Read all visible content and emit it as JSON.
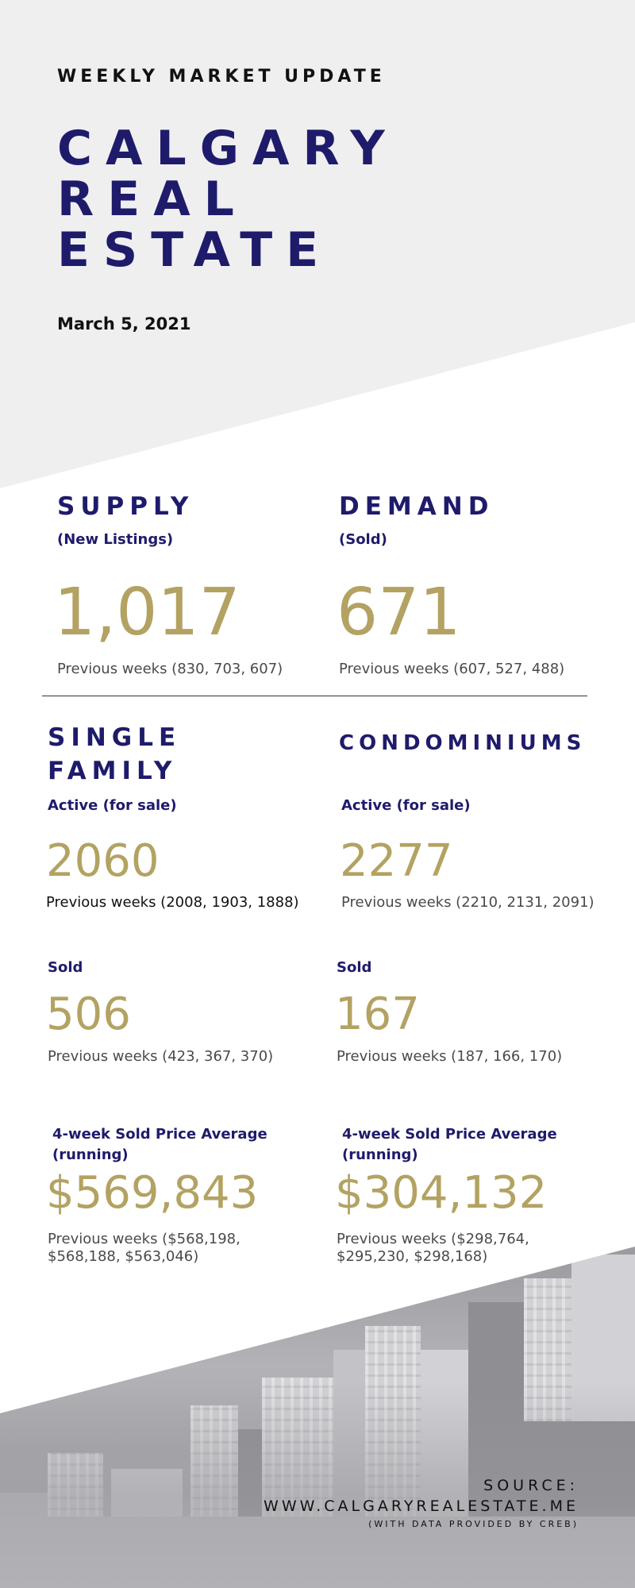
{
  "header": {
    "kicker": "WEEKLY MARKET UPDATE",
    "title_lines": [
      "CALGARY",
      "REAL",
      "ESTATE"
    ],
    "date": "March 5, 2021"
  },
  "supply": {
    "heading": "SUPPLY",
    "subheading": "(New Listings)",
    "value": "1,017",
    "previous": "Previous weeks (830, 703, 607)"
  },
  "demand": {
    "heading": "DEMAND",
    "subheading": "(Sold)",
    "value": "671",
    "previous": "Previous weeks (607, 527, 488)"
  },
  "single_family": {
    "heading_lines": [
      "SINGLE",
      "FAMILY"
    ],
    "active_label": "Active (for sale)",
    "active_value": "2060",
    "active_previous": "Previous weeks (2008, 1903, 1888)",
    "sold_label": "Sold",
    "sold_value": "506",
    "sold_previous": "Previous weeks (423, 367, 370)",
    "avg_label_lines": [
      "4-week Sold Price Average",
      "(running)"
    ],
    "avg_value": "$569,843",
    "avg_previous_lines": [
      "Previous weeks ($568,198,",
      "$568,188, $563,046)"
    ]
  },
  "condominiums": {
    "heading": "CONDOMINIUMS",
    "active_label": "Active (for sale)",
    "active_value": "2277",
    "active_previous": "Previous weeks (2210, 2131, 2091)",
    "sold_label": "Sold",
    "sold_value": "167",
    "sold_previous": "Previous weeks (187, 166, 170)",
    "avg_label_lines": [
      "4-week Sold Price Average",
      "(running)"
    ],
    "avg_value": "$304,132",
    "avg_previous_lines": [
      "Previous weeks ($298,764,",
      "$295,230, $298,168)"
    ]
  },
  "source": {
    "label": "SOURCE:",
    "url": "WWW.CALGARYREALESTATE.ME",
    "note": "(WITH DATA PROVIDED BY CREB)"
  },
  "colors": {
    "navy": "#1f1b6b",
    "gold": "#b3a262",
    "light_gray_background": "#efeff0"
  }
}
